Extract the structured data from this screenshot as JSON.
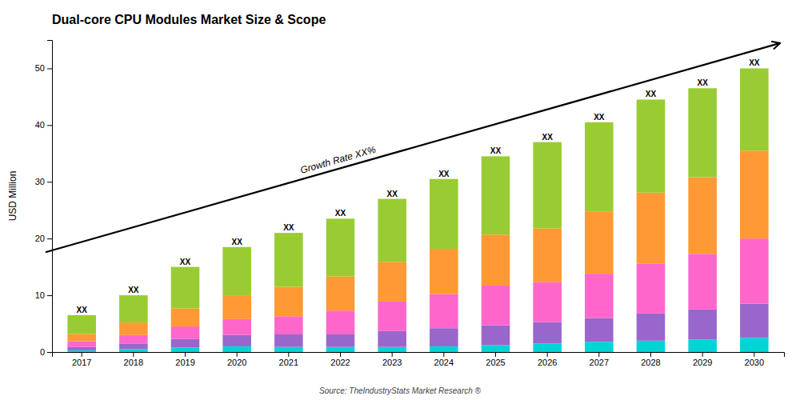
{
  "chart_data": {
    "type": "bar",
    "title": "Dual-core CPU Modules Market Size & Scope",
    "ylabel": "USD Million",
    "categories": [
      "2017",
      "2018",
      "2019",
      "2020",
      "2021",
      "2022",
      "2023",
      "2024",
      "2025",
      "2026",
      "2027",
      "2028",
      "2029",
      "2030"
    ],
    "series": [
      {
        "color": "#00D5D5",
        "values": [
          0.3,
          0.5,
          0.8,
          1.0,
          0.9,
          0.9,
          0.9,
          1.0,
          1.2,
          1.5,
          1.8,
          2.0,
          2.2,
          2.5
        ]
      },
      {
        "color": "#9966CC",
        "values": [
          0.6,
          1.0,
          1.5,
          2.0,
          2.2,
          2.2,
          2.8,
          3.2,
          3.5,
          3.8,
          4.2,
          4.8,
          5.3,
          6.0
        ]
      },
      {
        "color": "#FF66CC",
        "values": [
          1.0,
          1.5,
          2.2,
          2.8,
          3.2,
          4.2,
          5.2,
          6.0,
          7.0,
          7.0,
          7.8,
          8.8,
          9.8,
          11.5
        ]
      },
      {
        "color": "#FF9933",
        "values": [
          1.3,
          2.2,
          3.2,
          4.2,
          5.2,
          6.0,
          7.0,
          8.0,
          9.0,
          9.5,
          11.0,
          12.5,
          13.5,
          15.5
        ]
      },
      {
        "color": "#99CC33",
        "values": [
          3.3,
          4.8,
          7.3,
          8.5,
          9.5,
          10.2,
          11.1,
          12.3,
          13.8,
          15.2,
          15.7,
          16.4,
          15.7,
          14.5
        ]
      }
    ],
    "stacked": true,
    "grid": false,
    "ylim": [
      0,
      55
    ],
    "yticks": [
      0,
      10,
      20,
      30,
      40,
      50
    ],
    "annotations": [
      {
        "text": "Growth Rate XX%"
      },
      {
        "text": "Source: TheIndustryStats Market Research ®"
      },
      {
        "text": "XX",
        "x": "2017",
        "y": 6.5
      },
      {
        "text": "XX",
        "x": "2018",
        "y": 10.0
      },
      {
        "text": "XX",
        "x": "2019",
        "y": 15.0
      },
      {
        "text": "XX",
        "x": "2020",
        "y": 18.5
      },
      {
        "text": "XX",
        "x": "2021",
        "y": 21.0
      },
      {
        "text": "XX",
        "x": "2022",
        "y": 23.5
      },
      {
        "text": "XX",
        "x": "2023",
        "y": 27.0
      },
      {
        "text": "XX",
        "x": "2024",
        "y": 30.5
      },
      {
        "text": "XX",
        "x": "2025",
        "y": 34.5
      },
      {
        "text": "XX",
        "x": "2026",
        "y": 37.0
      },
      {
        "text": "XX",
        "x": "2027",
        "y": 40.5
      },
      {
        "text": "XX",
        "x": "2028",
        "y": 44.5
      },
      {
        "text": "XX",
        "x": "2029",
        "y": 46.5
      },
      {
        "text": "XX",
        "x": "2030",
        "y": 50.0
      }
    ]
  }
}
